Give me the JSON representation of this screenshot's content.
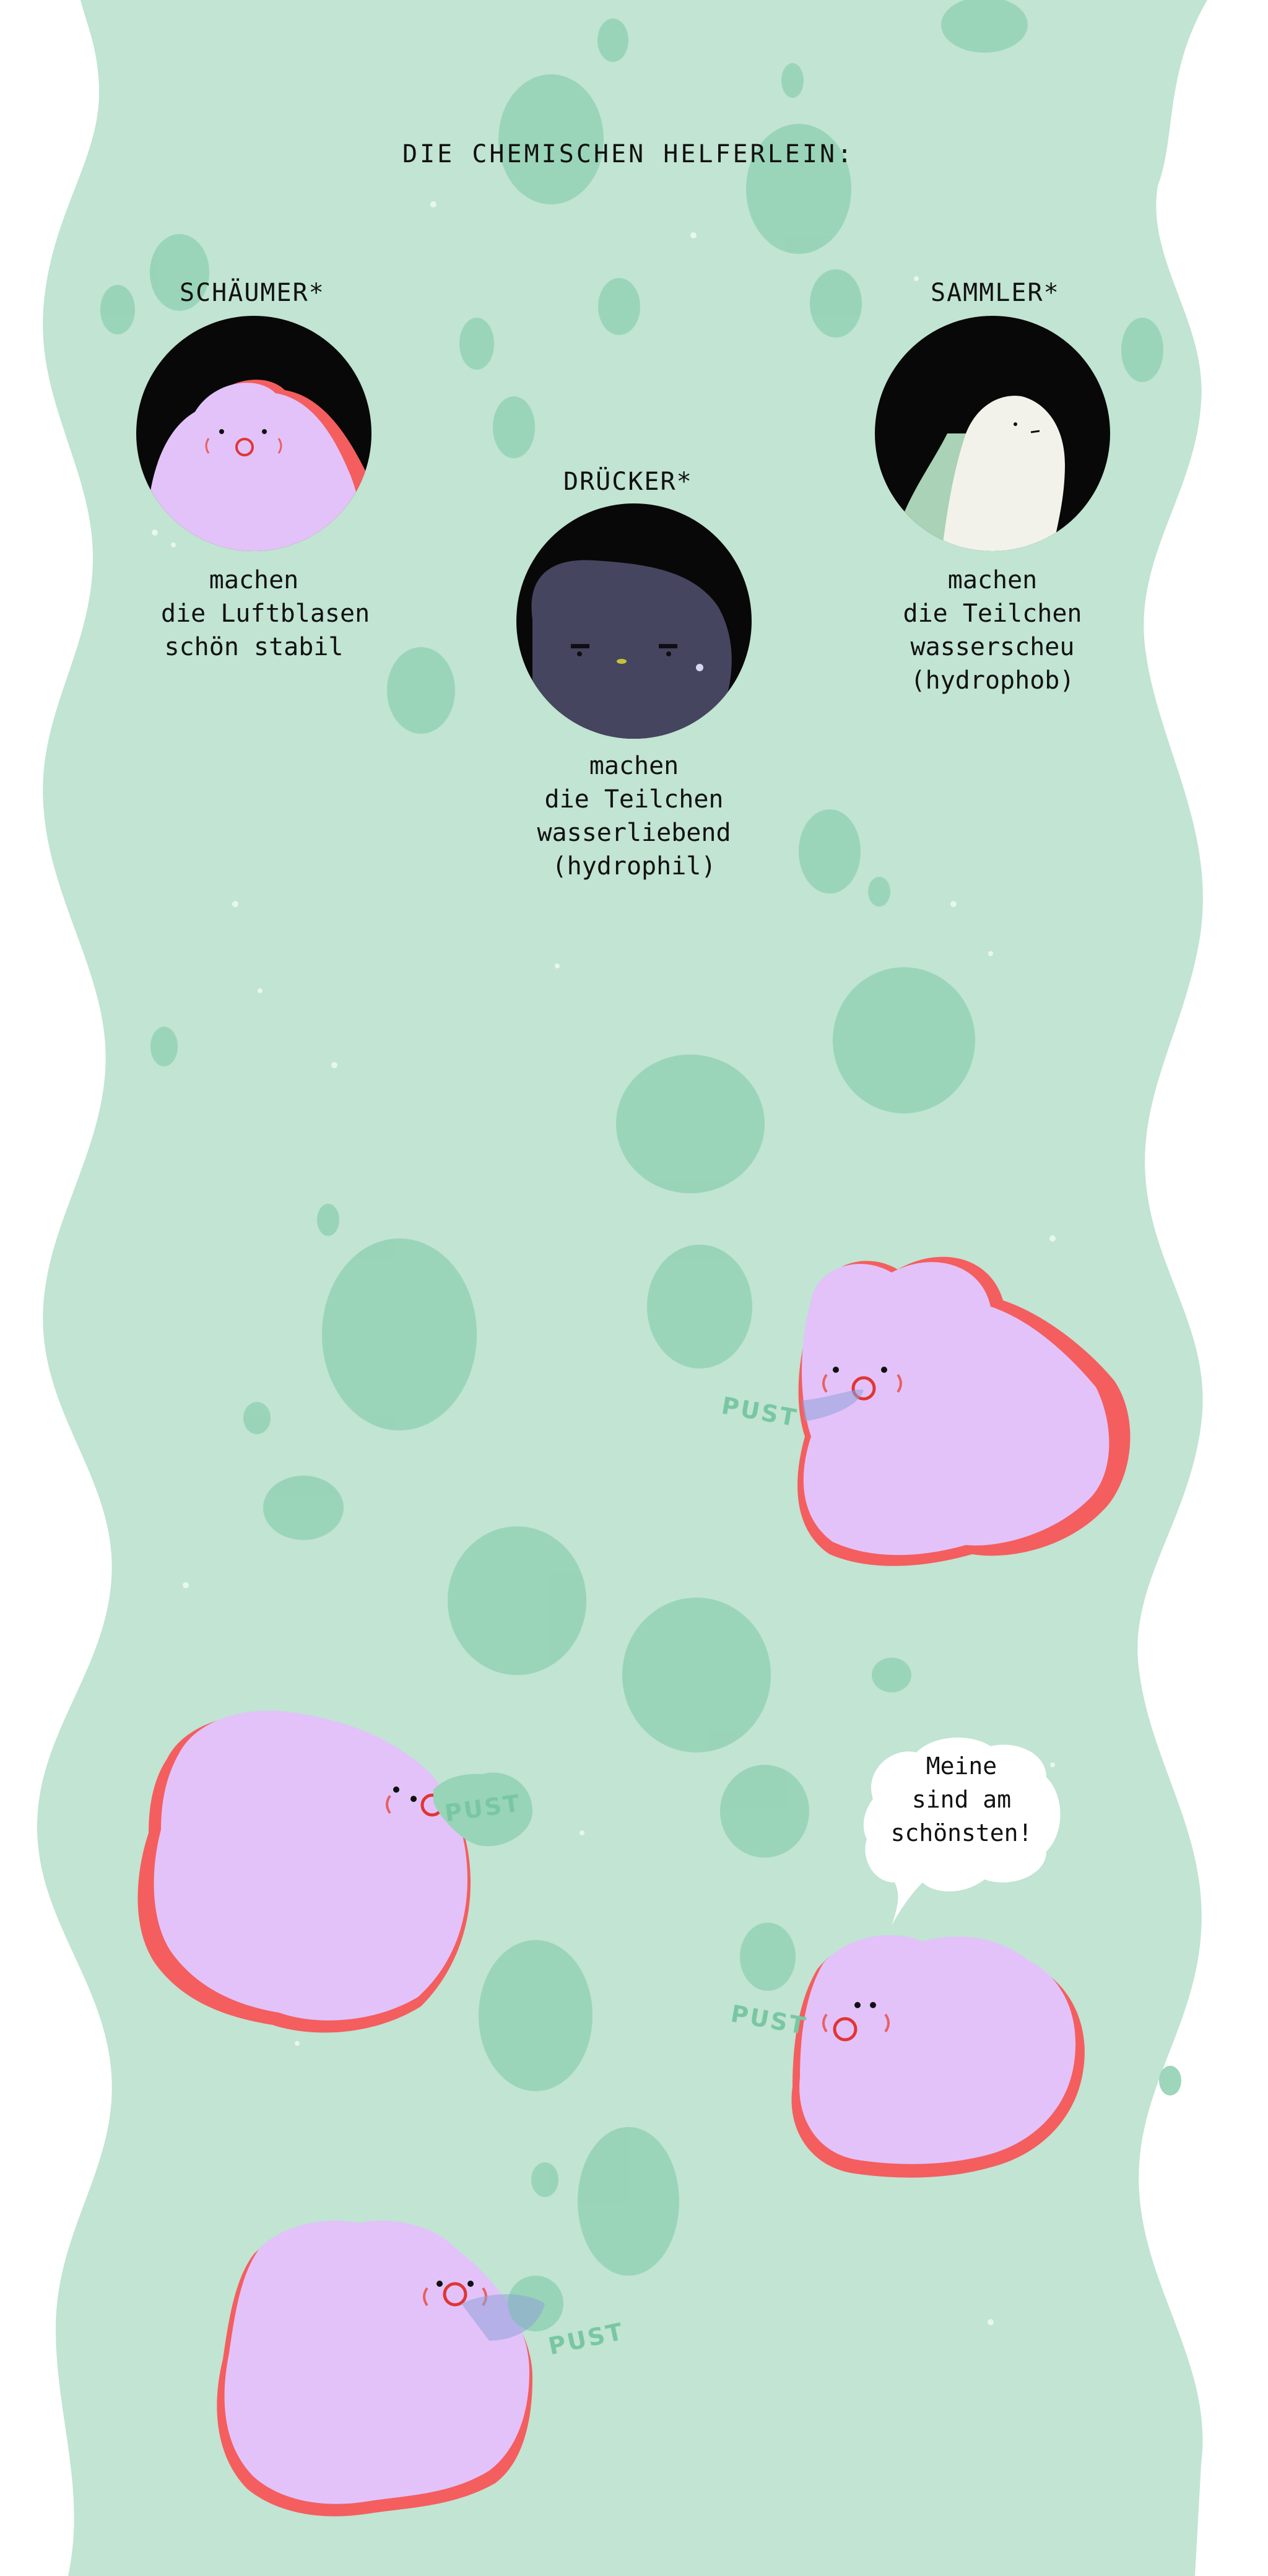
{
  "title": "DIE CHEMISCHEN HELFERLEIN:",
  "helpers": [
    {
      "name": "SCHÄUMER*",
      "desc": [
        "machen",
        "die Luftblasen",
        "schön stabil"
      ],
      "icon": "foamer-blob-icon"
    },
    {
      "name": "DRÜCKER*",
      "desc": [
        "machen",
        "die Teilchen",
        "wasserliebend",
        "(hydrophil)"
      ],
      "icon": "pusher-blob-icon"
    },
    {
      "name": "SAMMLER*",
      "desc": [
        "machen",
        "die Teilchen",
        "wasserscheu",
        "(hydrophob)"
      ],
      "icon": "collector-blob-icon"
    }
  ],
  "sound_effects": [
    "PUST",
    "PUST",
    "PUST",
    "PUST"
  ],
  "speech_bubble": [
    "Meine",
    "sind am",
    "schönsten!"
  ],
  "colors": {
    "water": "#c1e4d3",
    "bubble": "#98d4b7",
    "foamer": "#e2c2f9",
    "foamer_shadow": "#f45e5e",
    "pusher": "#45455f",
    "collector": "#f2f2ea",
    "portrait_bg": "#080808",
    "text": "#111111"
  }
}
